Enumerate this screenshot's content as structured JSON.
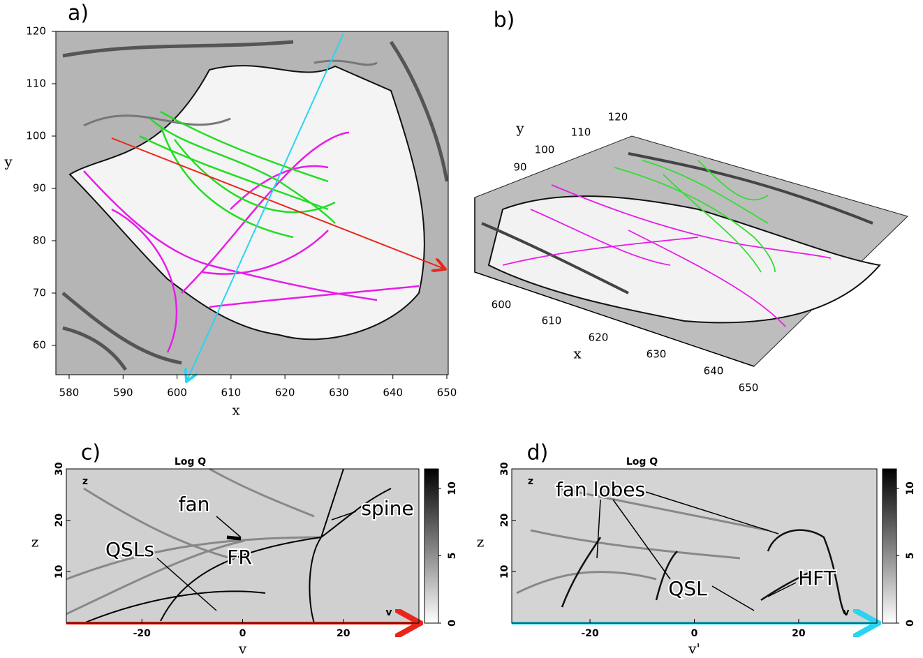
{
  "panels": [
    {
      "label": "a)",
      "x_axis_label": "x",
      "y_axis_label": "y",
      "xticks": [
        "580",
        "590",
        "600",
        "610",
        "620",
        "630",
        "640",
        "650"
      ],
      "yticks": [
        "60",
        "70",
        "80",
        "90",
        "100",
        "110",
        "120"
      ]
    },
    {
      "label": "b)",
      "x_axis_label": "x",
      "y_axis_label": "y",
      "xticks": [
        "600",
        "610",
        "620",
        "630",
        "640",
        "650"
      ],
      "yticks": [
        "90",
        "100",
        "110",
        "120"
      ]
    },
    {
      "label": "c)",
      "title": "Log Q",
      "x_axis_label": "v",
      "y_axis_label": "z",
      "inner_labels": [
        "z",
        "v"
      ],
      "xticks": [
        "-20",
        "0",
        "20"
      ],
      "yticks": [
        "10",
        "20",
        "30"
      ],
      "colorbar_ticks": [
        "0",
        "5",
        "10"
      ],
      "annotations": [
        "fan",
        "spine",
        "QSLs",
        "FR"
      ]
    },
    {
      "label": "d)",
      "title": "Log Q",
      "x_axis_label": "v'",
      "y_axis_label": "z",
      "inner_labels": [
        "z",
        "v"
      ],
      "xticks": [
        "-20",
        "0",
        "20"
      ],
      "yticks": [
        "10",
        "20",
        "30"
      ],
      "colorbar_ticks": [
        "0",
        "5",
        "10"
      ],
      "annotations": [
        "fan lobes",
        "QSL",
        "HFT"
      ]
    }
  ]
}
